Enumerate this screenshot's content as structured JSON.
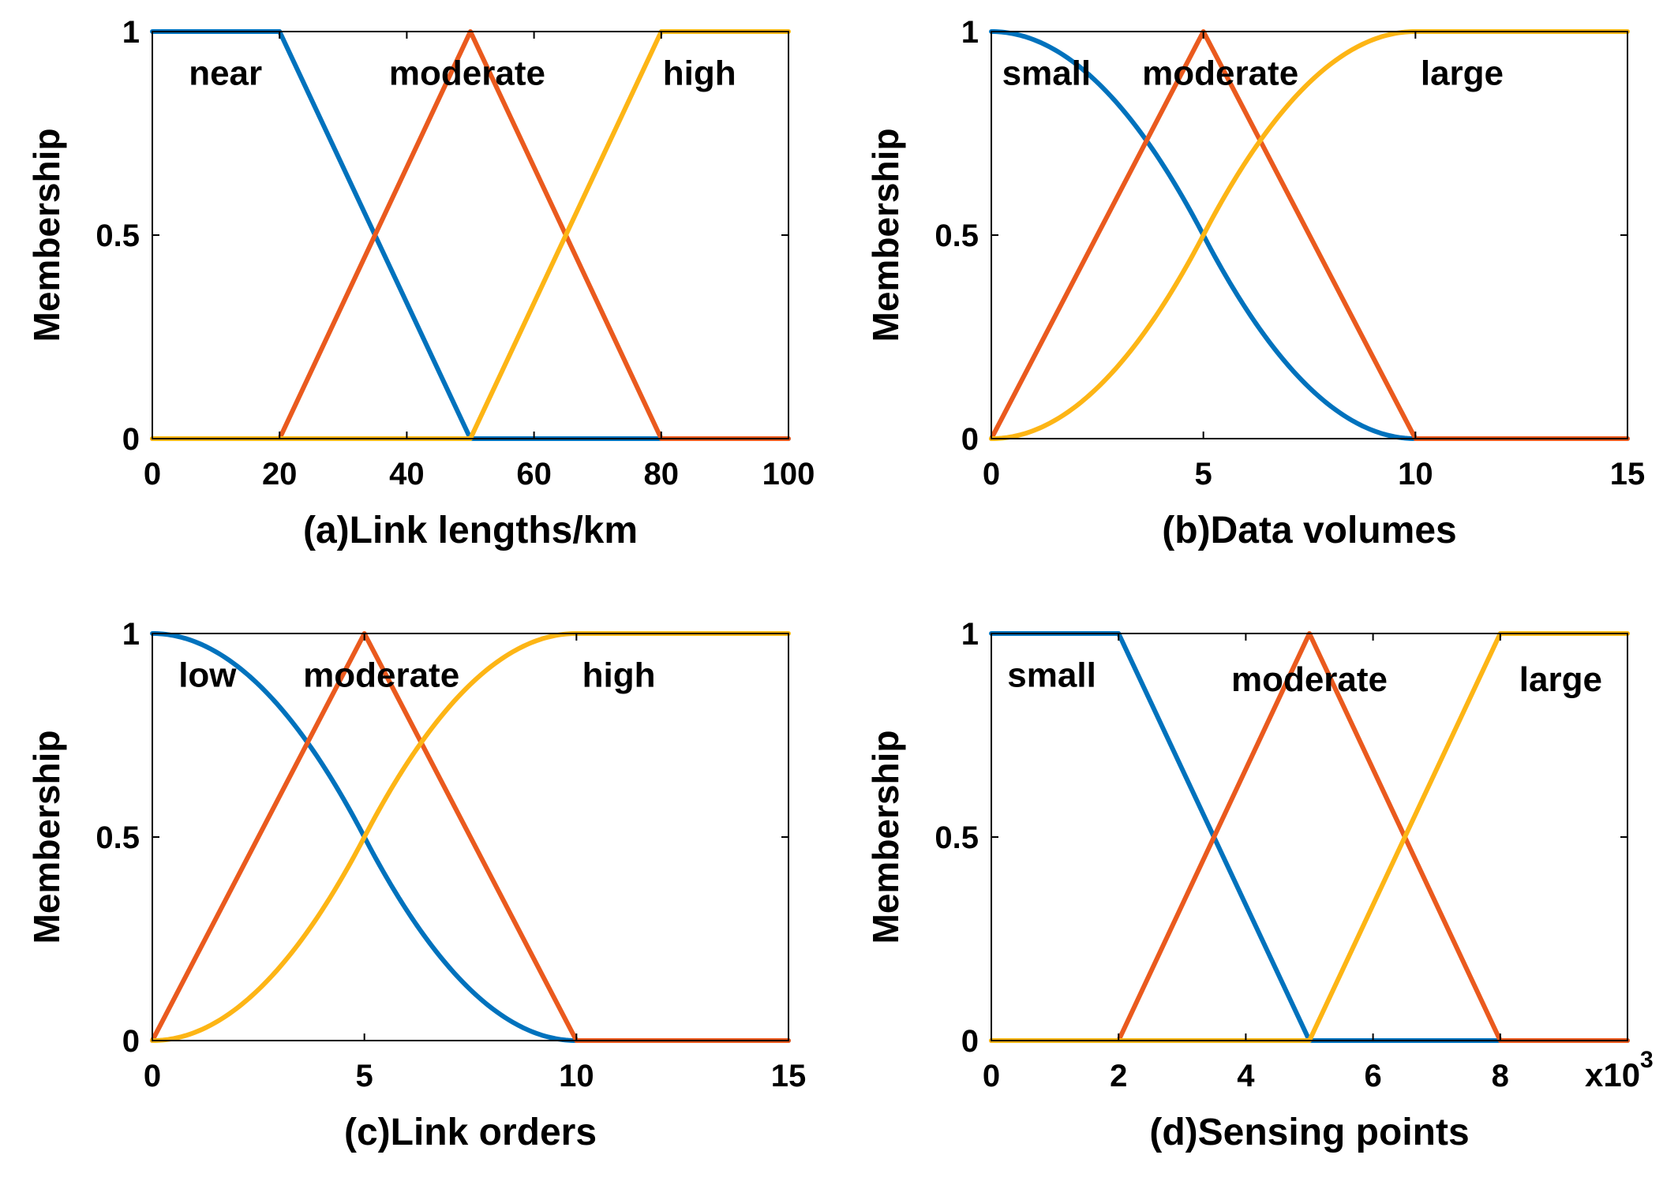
{
  "colors": {
    "blue": "#0072BD",
    "orange": "#EA5A1E",
    "yellow": "#FDB515"
  },
  "chart_data": [
    {
      "id": "a",
      "type": "line",
      "xlabel": "(a)Link lengths/km",
      "ylabel": "Membership",
      "xlim": [
        0,
        100
      ],
      "ylim": [
        0,
        1
      ],
      "xticks": [
        0,
        20,
        40,
        60,
        80,
        100
      ],
      "xtick_labels": [
        "0",
        "20",
        "40",
        "60",
        "80",
        "100"
      ],
      "yticks": [
        0,
        0.5,
        1
      ],
      "ytick_labels": [
        "0",
        "0.5",
        "1"
      ],
      "x_multiplier": "",
      "series": [
        {
          "name": "near",
          "color": "blue",
          "kind": "linear",
          "x": [
            0,
            20,
            50,
            100
          ],
          "y": [
            1,
            1,
            0,
            0
          ]
        },
        {
          "name": "moderate",
          "color": "orange",
          "kind": "linear",
          "x": [
            0,
            20,
            50,
            80,
            100
          ],
          "y": [
            0,
            0,
            1,
            0,
            0
          ]
        },
        {
          "name": "high",
          "color": "yellow",
          "kind": "linear",
          "x": [
            0,
            50,
            80,
            100
          ],
          "y": [
            0,
            0,
            1,
            1
          ]
        }
      ],
      "annotations": [
        {
          "text": "near",
          "x": 11.5,
          "y": 0.9
        },
        {
          "text": "moderate",
          "x": 49.5,
          "y": 0.9
        },
        {
          "text": "high",
          "x": 86,
          "y": 0.9
        }
      ]
    },
    {
      "id": "b",
      "type": "line",
      "xlabel": "(b)Data volumes",
      "ylabel": "Membership",
      "xlim": [
        0,
        15
      ],
      "ylim": [
        0,
        1
      ],
      "xticks": [
        0,
        5,
        10,
        15
      ],
      "xtick_labels": [
        "0",
        "5",
        "10",
        "15"
      ],
      "yticks": [
        0,
        0.5,
        1
      ],
      "ytick_labels": [
        "0",
        "0.5",
        "1"
      ],
      "x_multiplier": "",
      "series": [
        {
          "name": "small",
          "color": "blue",
          "kind": "zmf",
          "a": 0,
          "b": 10,
          "xmax": 15
        },
        {
          "name": "moderate",
          "color": "orange",
          "kind": "linear",
          "x": [
            0,
            5,
            10,
            15
          ],
          "y": [
            0,
            1,
            0,
            0
          ]
        },
        {
          "name": "large",
          "color": "yellow",
          "kind": "smf",
          "a": 0,
          "b": 10,
          "xmax": 15
        }
      ],
      "annotations": [
        {
          "text": "small",
          "x": 1.3,
          "y": 0.9
        },
        {
          "text": "moderate",
          "x": 5.4,
          "y": 0.9
        },
        {
          "text": "large",
          "x": 11.1,
          "y": 0.9
        }
      ]
    },
    {
      "id": "c",
      "type": "line",
      "xlabel": "(c)Link orders",
      "ylabel": "Membership",
      "xlim": [
        0,
        15
      ],
      "ylim": [
        0,
        1
      ],
      "xticks": [
        0,
        5,
        10,
        15
      ],
      "xtick_labels": [
        "0",
        "5",
        "10",
        "15"
      ],
      "yticks": [
        0,
        0.5,
        1
      ],
      "ytick_labels": [
        "0",
        "0.5",
        "1"
      ],
      "x_multiplier": "",
      "series": [
        {
          "name": "low",
          "color": "blue",
          "kind": "zmf",
          "a": 0,
          "b": 10,
          "xmax": 15
        },
        {
          "name": "moderate",
          "color": "orange",
          "kind": "linear",
          "x": [
            0,
            5,
            10,
            15
          ],
          "y": [
            0,
            1,
            0,
            0
          ]
        },
        {
          "name": "high",
          "color": "yellow",
          "kind": "smf",
          "a": 0,
          "b": 10,
          "xmax": 15
        }
      ],
      "annotations": [
        {
          "text": "low",
          "x": 1.3,
          "y": 0.9
        },
        {
          "text": "moderate",
          "x": 5.4,
          "y": 0.9
        },
        {
          "text": "high",
          "x": 11.0,
          "y": 0.9
        }
      ]
    },
    {
      "id": "d",
      "type": "line",
      "xlabel": "(d)Sensing points",
      "ylabel": "Membership",
      "xlim": [
        0,
        10
      ],
      "ylim": [
        0,
        1
      ],
      "xticks": [
        0,
        2,
        4,
        6,
        8
      ],
      "xtick_labels": [
        "0",
        "2",
        "4",
        "6",
        "8"
      ],
      "yticks": [
        0,
        0.5,
        1
      ],
      "ytick_labels": [
        "0",
        "0.5",
        "1"
      ],
      "x_multiplier": "x10",
      "x_multiplier_exp": "3",
      "series": [
        {
          "name": "small",
          "color": "blue",
          "kind": "linear",
          "x": [
            0,
            2,
            5,
            10
          ],
          "y": [
            1,
            1,
            0,
            0
          ]
        },
        {
          "name": "moderate",
          "color": "orange",
          "kind": "linear",
          "x": [
            0,
            2,
            5,
            8,
            10
          ],
          "y": [
            0,
            0,
            1,
            0,
            0
          ]
        },
        {
          "name": "large",
          "color": "yellow",
          "kind": "linear",
          "x": [
            0,
            5,
            8,
            10
          ],
          "y": [
            0,
            0,
            1,
            1
          ]
        }
      ],
      "annotations": [
        {
          "text": "small",
          "x": 0.95,
          "y": 0.9
        },
        {
          "text": "moderate",
          "x": 5.0,
          "y": 0.89
        },
        {
          "text": "large",
          "x": 8.95,
          "y": 0.89
        }
      ]
    }
  ]
}
